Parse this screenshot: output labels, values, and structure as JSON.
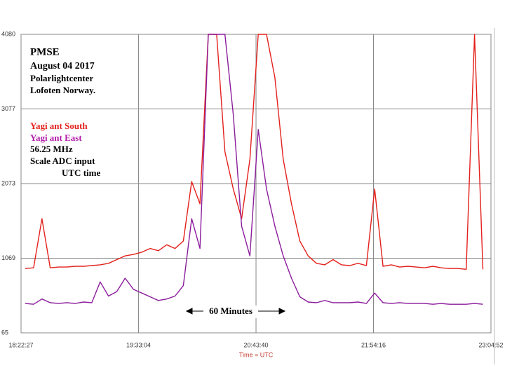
{
  "chart_data": {
    "type": "line",
    "title": "PMSE",
    "subtitle": [
      "August 04 2017",
      "Polarlightcenter",
      "Lofoten Norway."
    ],
    "annotations": [
      "56.25 MHz",
      "Scale ADC input",
      "UTC time",
      "60 Minutes"
    ],
    "xlabel": "Time = UTC",
    "x": [
      "18:25:00",
      "18:30:00",
      "18:35:00",
      "18:40:00",
      "18:45:00",
      "18:50:00",
      "18:55:00",
      "19:00:00",
      "19:05:00",
      "19:10:00",
      "19:15:00",
      "19:20:00",
      "19:25:00",
      "19:30:00",
      "19:35:00",
      "19:40:00",
      "19:45:00",
      "19:50:00",
      "19:55:00",
      "20:00:00",
      "20:05:00",
      "20:10:00",
      "20:15:00",
      "20:20:00",
      "20:25:00",
      "20:30:00",
      "20:35:00",
      "20:40:00",
      "20:45:00",
      "20:50:00",
      "20:55:00",
      "21:00:00",
      "21:05:00",
      "21:10:00",
      "21:15:00",
      "21:20:00",
      "21:25:00",
      "21:30:00",
      "21:35:00",
      "21:40:00",
      "21:45:00",
      "21:50:00",
      "21:55:00",
      "22:00:00",
      "22:05:00",
      "22:10:00",
      "22:15:00",
      "22:20:00",
      "22:25:00",
      "22:30:00",
      "22:35:00",
      "22:40:00",
      "22:45:00",
      "22:50:00",
      "22:55:00",
      "23:00:00"
    ],
    "series": [
      {
        "name": "Yagi ant South",
        "color": "#e3201b",
        "values": [
          930,
          940,
          1600,
          940,
          950,
          950,
          960,
          960,
          970,
          980,
          1000,
          1050,
          1100,
          1120,
          1150,
          1200,
          1170,
          1250,
          1200,
          1300,
          2100,
          1800,
          4080,
          4080,
          2500,
          2000,
          1600,
          2400,
          4080,
          4080,
          3500,
          2400,
          1800,
          1300,
          1100,
          1000,
          980,
          1050,
          980,
          970,
          1000,
          970,
          2000,
          960,
          980,
          950,
          960,
          950,
          940,
          960,
          940,
          930,
          930,
          920,
          4080,
          920
        ]
      },
      {
        "name": "Yagi ant East",
        "color": "#8b1c9c",
        "values": [
          460,
          450,
          520,
          470,
          460,
          470,
          460,
          480,
          470,
          750,
          560,
          620,
          800,
          650,
          600,
          550,
          500,
          520,
          560,
          700,
          1600,
          1200,
          4080,
          4080,
          4080,
          3000,
          1500,
          1100,
          2800,
          2000,
          1500,
          1100,
          800,
          550,
          480,
          470,
          500,
          470,
          470,
          470,
          480,
          460,
          600,
          470,
          460,
          470,
          460,
          460,
          460,
          450,
          460,
          450,
          450,
          450,
          460,
          450
        ]
      }
    ],
    "xlim": [
      "18:22:27",
      "23:04:52"
    ],
    "xticks": [
      "18:22:27",
      "19:33:04",
      "20:43:40",
      "21:54:16",
      "23:04:52"
    ],
    "ylim": [
      65,
      4080
    ],
    "yticks": [
      65,
      1069,
      2073,
      3077,
      4080
    ],
    "grid": true
  }
}
